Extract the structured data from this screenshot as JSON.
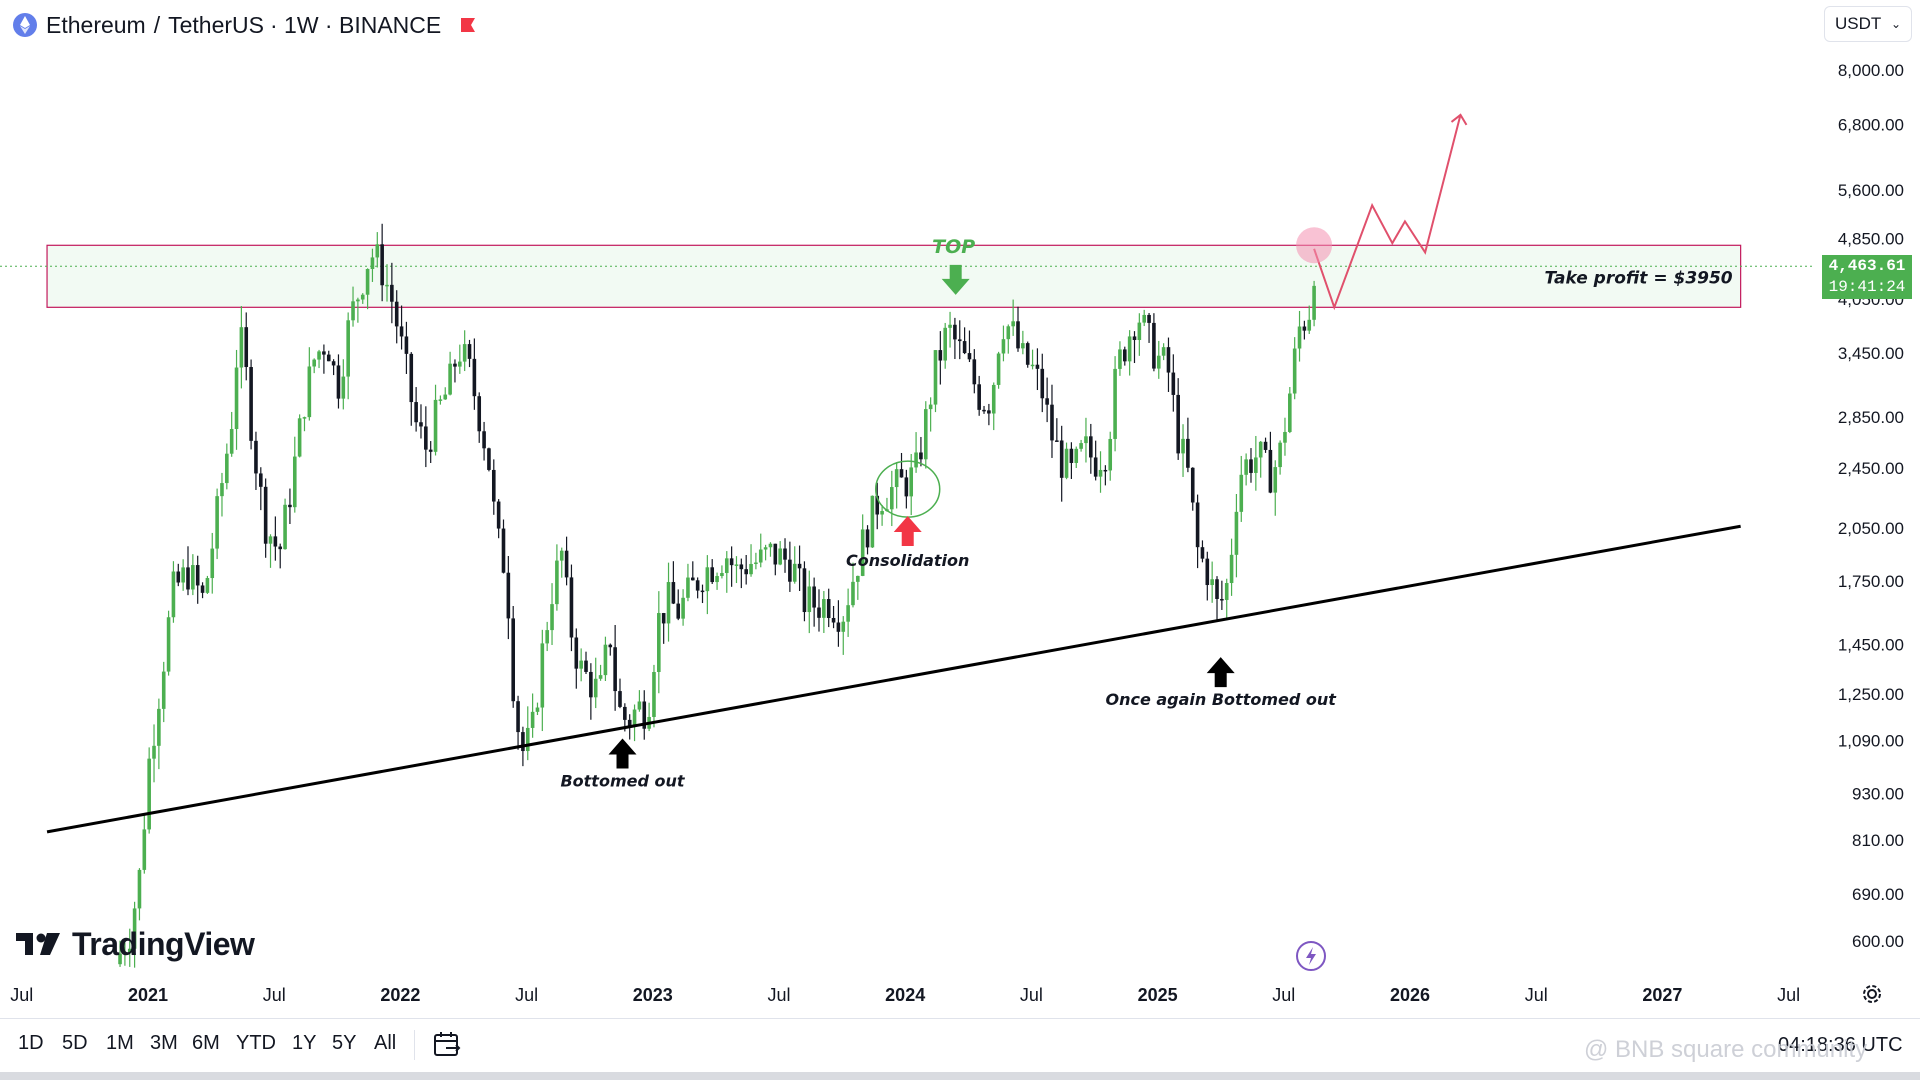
{
  "header": {
    "symbol": "Ethereum",
    "separator1": "/",
    "quote": "TetherUS",
    "interval_exchange": "· 1W · BINANCE"
  },
  "currency": "USDT",
  "price_tag": {
    "price": "4,463.61",
    "countdown": "19:41:24"
  },
  "time_ranges": [
    "1D",
    "5D",
    "1M",
    "3M",
    "6M",
    "YTD",
    "1Y",
    "5Y",
    "All"
  ],
  "utc_time": "04:18:36 UTC",
  "watermark": "@ BNB square community",
  "logo_text": "TradingView",
  "icons": {
    "coin": "ethereum-logo-icon",
    "flag": "red-flag-icon",
    "calendar": "calendar-range-icon",
    "bolt": "lightning-icon",
    "settings": "gear-icon",
    "chevron": "chevron-down-icon"
  },
  "colors": {
    "up": "#4caf50",
    "down": "#131722",
    "zone_border": "#c2185b",
    "zone_fill": "#e8f5e9",
    "projection": "#e0506c"
  },
  "chart_data": {
    "type": "candlestick",
    "title": "Ethereum / TetherUS · 1W · BINANCE",
    "y_scale": "log",
    "ylim": [
      560,
      9000
    ],
    "xlim": [
      2020.5,
      2027.6
    ],
    "y_ticks": [
      8000,
      6800,
      5600,
      4850,
      3450,
      2850,
      2450,
      2050,
      1750,
      1450,
      1250,
      1090,
      930,
      810,
      690,
      600
    ],
    "y_tick_labels": [
      "8,000.00",
      "6,800.00",
      "5,600.00",
      "4,850.00",
      "3,450.00",
      "2,850.00",
      "2,450.00",
      "2,050.00",
      "1,750.00",
      "1,450.00",
      "1,250.00",
      "1,090.00",
      "930.00",
      "810.00",
      "690.00",
      "600.00"
    ],
    "x_ticks": [
      {
        "t": 2020.5,
        "label": "Jul",
        "bold": false
      },
      {
        "t": 2021.0,
        "label": "2021",
        "bold": true
      },
      {
        "t": 2021.5,
        "label": "Jul",
        "bold": false
      },
      {
        "t": 2022.0,
        "label": "2022",
        "bold": true
      },
      {
        "t": 2022.5,
        "label": "Jul",
        "bold": false
      },
      {
        "t": 2023.0,
        "label": "2023",
        "bold": true
      },
      {
        "t": 2023.5,
        "label": "Jul",
        "bold": false
      },
      {
        "t": 2024.0,
        "label": "2024",
        "bold": true
      },
      {
        "t": 2024.5,
        "label": "Jul",
        "bold": false
      },
      {
        "t": 2025.0,
        "label": "2025",
        "bold": true
      },
      {
        "t": 2025.5,
        "label": "Jul",
        "bold": false
      },
      {
        "t": 2026.0,
        "label": "2026",
        "bold": true
      },
      {
        "t": 2026.5,
        "label": "Jul",
        "bold": false
      },
      {
        "t": 2027.0,
        "label": "2027",
        "bold": true
      },
      {
        "t": 2027.5,
        "label": "Jul",
        "bold": false
      }
    ],
    "current_price": 4463.61,
    "price_path": [
      [
        2020.87,
        560
      ],
      [
        2020.93,
        620
      ],
      [
        2020.97,
        740
      ],
      [
        2021.0,
        1000
      ],
      [
        2021.05,
        1300
      ],
      [
        2021.1,
        1700
      ],
      [
        2021.16,
        1800
      ],
      [
        2021.22,
        1650
      ],
      [
        2021.28,
        2200
      ],
      [
        2021.33,
        2800
      ],
      [
        2021.36,
        3700
      ],
      [
        2021.39,
        3200
      ],
      [
        2021.42,
        2600
      ],
      [
        2021.46,
        2100
      ],
      [
        2021.52,
        1900
      ],
      [
        2021.57,
        2350
      ],
      [
        2021.62,
        3000
      ],
      [
        2021.66,
        3400
      ],
      [
        2021.71,
        3600
      ],
      [
        2021.75,
        3100
      ],
      [
        2021.8,
        3800
      ],
      [
        2021.84,
        4200
      ],
      [
        2021.88,
        4650
      ],
      [
        2021.92,
        4500
      ],
      [
        2021.97,
        4000
      ],
      [
        2022.02,
        3300
      ],
      [
        2022.06,
        2800
      ],
      [
        2022.1,
        2600
      ],
      [
        2022.15,
        2900
      ],
      [
        2022.19,
        3100
      ],
      [
        2022.23,
        3500
      ],
      [
        2022.27,
        3300
      ],
      [
        2022.31,
        2900
      ],
      [
        2022.35,
        2500
      ],
      [
        2022.38,
        2000
      ],
      [
        2022.42,
        1800
      ],
      [
        2022.45,
        1250
      ],
      [
        2022.48,
        1050
      ],
      [
        2022.52,
        1100
      ],
      [
        2022.56,
        1400
      ],
      [
        2022.6,
        1700
      ],
      [
        2022.64,
        1900
      ],
      [
        2022.67,
        1550
      ],
      [
        2022.71,
        1350
      ],
      [
        2022.75,
        1300
      ],
      [
        2022.79,
        1250
      ],
      [
        2022.83,
        1500
      ],
      [
        2022.86,
        1200
      ],
      [
        2022.9,
        1150
      ],
      [
        2022.94,
        1200
      ],
      [
        2022.98,
        1200
      ],
      [
        2023.02,
        1550
      ],
      [
        2023.06,
        1650
      ],
      [
        2023.1,
        1600
      ],
      [
        2023.15,
        1700
      ],
      [
        2023.2,
        1800
      ],
      [
        2023.25,
        1850
      ],
      [
        2023.29,
        1900
      ],
      [
        2023.33,
        1800
      ],
      [
        2023.38,
        1850
      ],
      [
        2023.42,
        1850
      ],
      [
        2023.46,
        1900
      ],
      [
        2023.5,
        1880
      ],
      [
        2023.55,
        1850
      ],
      [
        2023.6,
        1650
      ],
      [
        2023.65,
        1630
      ],
      [
        2023.7,
        1650
      ],
      [
        2023.75,
        1580
      ],
      [
        2023.8,
        1800
      ],
      [
        2023.85,
        2050
      ],
      [
        2023.9,
        2250
      ],
      [
        2023.95,
        2300
      ],
      [
        2024.0,
        2350
      ],
      [
        2024.04,
        2400
      ],
      [
        2024.08,
        2800
      ],
      [
        2024.12,
        3300
      ],
      [
        2024.17,
        3700
      ],
      [
        2024.21,
        3500
      ],
      [
        2024.25,
        3300
      ],
      [
        2024.3,
        3000
      ],
      [
        2024.34,
        3000
      ],
      [
        2024.38,
        3800
      ],
      [
        2024.42,
        3700
      ],
      [
        2024.46,
        3400
      ],
      [
        2024.5,
        3300
      ],
      [
        2024.54,
        3100
      ],
      [
        2024.58,
        2700
      ],
      [
        2024.62,
        2500
      ],
      [
        2024.66,
        2400
      ],
      [
        2024.71,
        2600
      ],
      [
        2024.75,
        2500
      ],
      [
        2024.8,
        2600
      ],
      [
        2024.84,
        3300
      ],
      [
        2024.88,
        3600
      ],
      [
        2024.92,
        3900
      ],
      [
        2024.96,
        3600
      ],
      [
        2025.0,
        3400
      ],
      [
        2025.04,
        3300
      ],
      [
        2025.08,
        2700
      ],
      [
        2025.12,
        2400
      ],
      [
        2025.16,
        1900
      ],
      [
        2025.2,
        1800
      ],
      [
        2025.24,
        1600
      ],
      [
        2025.28,
        1750
      ],
      [
        2025.32,
        2400
      ],
      [
        2025.36,
        2500
      ],
      [
        2025.4,
        2550
      ],
      [
        2025.44,
        2400
      ],
      [
        2025.48,
        2500
      ],
      [
        2025.52,
        3000
      ],
      [
        2025.56,
        3700
      ],
      [
        2025.6,
        3900
      ],
      [
        2025.62,
        4463.61
      ]
    ],
    "resistance_zone": {
      "low": 3950,
      "high": 4750,
      "t_start": 2020.6,
      "t_end": 2027.31,
      "label": "Take profit = $3950"
    },
    "trendline": {
      "t1": 2020.6,
      "p1": 830,
      "t2": 2027.31,
      "p2": 2060
    },
    "projection_path": [
      [
        2025.62,
        4700
      ],
      [
        2025.7,
        3950
      ],
      [
        2025.85,
        5350
      ],
      [
        2025.93,
        4780
      ],
      [
        2025.98,
        5100
      ],
      [
        2026.06,
        4650
      ],
      [
        2026.2,
        7000
      ]
    ],
    "annotations": [
      {
        "text": "TOP",
        "t": 2024.2,
        "p": 4700,
        "color": "#4caf50",
        "arrow": "down-green"
      },
      {
        "text": "Consolidation",
        "t": 2024.01,
        "p": 1830,
        "color": "#131722",
        "arrow": "up-red"
      },
      {
        "text": "Bottomed out",
        "t": 2022.88,
        "p": 950,
        "color": "#131722",
        "arrow": "up-black"
      },
      {
        "text": "Once again Bottomed out",
        "t": 2025.25,
        "p": 1210,
        "color": "#131722",
        "arrow": "up-black"
      }
    ],
    "grid": false,
    "legend": "none"
  }
}
